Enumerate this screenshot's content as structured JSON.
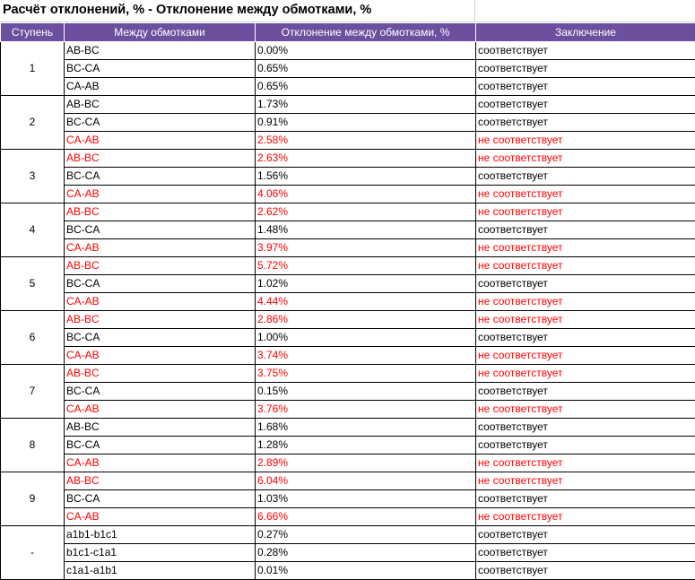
{
  "title": "Расчёт отклонений, % - Отклонение между обмотками, %",
  "headers": [
    "Ступень",
    "Между обмотками",
    "Отклонение между обмотками, %",
    "Заключение"
  ],
  "colors": {
    "header_bg": "#6c4f9e",
    "fail_text": "#ff0000",
    "ok_text": "#000000"
  },
  "groups": [
    {
      "step": "1",
      "rows": [
        {
          "pair": "AB-BC",
          "deviation": "0.00%",
          "conclusion": "соответствует",
          "fail": false
        },
        {
          "pair": "BC-CA",
          "deviation": "0.65%",
          "conclusion": "соответствует",
          "fail": false
        },
        {
          "pair": "CA-AB",
          "deviation": "0.65%",
          "conclusion": "соответствует",
          "fail": false
        }
      ]
    },
    {
      "step": "2",
      "rows": [
        {
          "pair": "AB-BC",
          "deviation": "1.73%",
          "conclusion": "соответствует",
          "fail": false
        },
        {
          "pair": "BC-CA",
          "deviation": "0.91%",
          "conclusion": "соответствует",
          "fail": false
        },
        {
          "pair": "CA-AB",
          "deviation": "2.58%",
          "conclusion": "не соответствует",
          "fail": true
        }
      ]
    },
    {
      "step": "3",
      "rows": [
        {
          "pair": "AB-BC",
          "deviation": "2.63%",
          "conclusion": "не соответствует",
          "fail": true
        },
        {
          "pair": "BC-CA",
          "deviation": "1.56%",
          "conclusion": "соответствует",
          "fail": false
        },
        {
          "pair": "CA-AB",
          "deviation": "4.06%",
          "conclusion": "не соответствует",
          "fail": true
        }
      ]
    },
    {
      "step": "4",
      "rows": [
        {
          "pair": "AB-BC",
          "deviation": "2.62%",
          "conclusion": "не соответствует",
          "fail": true
        },
        {
          "pair": "BC-CA",
          "deviation": "1.48%",
          "conclusion": "соответствует",
          "fail": false
        },
        {
          "pair": "CA-AB",
          "deviation": "3.97%",
          "conclusion": "не соответствует",
          "fail": true
        }
      ]
    },
    {
      "step": "5",
      "rows": [
        {
          "pair": "AB-BC",
          "deviation": "5.72%",
          "conclusion": "не соответствует",
          "fail": true
        },
        {
          "pair": "BC-CA",
          "deviation": "1.02%",
          "conclusion": "соответствует",
          "fail": false
        },
        {
          "pair": "CA-AB",
          "deviation": "4.44%",
          "conclusion": "не соответствует",
          "fail": true
        }
      ]
    },
    {
      "step": "6",
      "rows": [
        {
          "pair": "AB-BC",
          "deviation": "2.86%",
          "conclusion": "не соответствует",
          "fail": true
        },
        {
          "pair": "BC-CA",
          "deviation": "1.00%",
          "conclusion": "соответствует",
          "fail": false
        },
        {
          "pair": "CA-AB",
          "deviation": "3.74%",
          "conclusion": "не соответствует",
          "fail": true
        }
      ]
    },
    {
      "step": "7",
      "rows": [
        {
          "pair": "AB-BC",
          "deviation": "3.75%",
          "conclusion": "не соответствует",
          "fail": true
        },
        {
          "pair": "BC-CA",
          "deviation": "0.15%",
          "conclusion": "соответствует",
          "fail": false
        },
        {
          "pair": "CA-AB",
          "deviation": "3.76%",
          "conclusion": "не соответствует",
          "fail": true
        }
      ]
    },
    {
      "step": "8",
      "rows": [
        {
          "pair": "AB-BC",
          "deviation": "1.68%",
          "conclusion": "соответствует",
          "fail": false
        },
        {
          "pair": "BC-CA",
          "deviation": "1.28%",
          "conclusion": "соответствует",
          "fail": false
        },
        {
          "pair": "CA-AB",
          "deviation": "2.89%",
          "conclusion": "не соответствует",
          "fail": true
        }
      ]
    },
    {
      "step": "9",
      "rows": [
        {
          "pair": "AB-BC",
          "deviation": "6.04%",
          "conclusion": "не соответствует",
          "fail": true
        },
        {
          "pair": "BC-CA",
          "deviation": "1.03%",
          "conclusion": "соответствует",
          "fail": false
        },
        {
          "pair": "CA-AB",
          "deviation": "6.66%",
          "conclusion": "не соответствует",
          "fail": true
        }
      ]
    },
    {
      "step": "-",
      "rows": [
        {
          "pair": "a1b1-b1c1",
          "deviation": "0.27%",
          "conclusion": "соответствует",
          "fail": false
        },
        {
          "pair": "b1c1-c1a1",
          "deviation": "0.28%",
          "conclusion": "соответствует",
          "fail": false
        },
        {
          "pair": "c1a1-a1b1",
          "deviation": "0.01%",
          "conclusion": "соответствует",
          "fail": false
        }
      ]
    }
  ]
}
